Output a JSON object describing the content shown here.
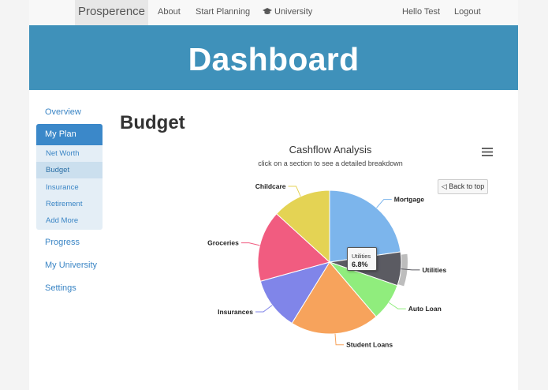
{
  "navbar": {
    "brand": "Prosperence",
    "links": [
      "About",
      "Start Planning",
      "University"
    ],
    "greeting": "Hello Test",
    "logout": "Logout",
    "university_icon": "graduation-cap-icon"
  },
  "banner": {
    "title": "Dashboard"
  },
  "sidebar": {
    "items": [
      "Overview",
      "My Plan",
      "Progress",
      "My University",
      "Settings"
    ],
    "active": "My Plan",
    "subitems": [
      "Net Worth",
      "Budget",
      "Insurance",
      "Retirement",
      "Add More"
    ],
    "active_subitem": "Budget"
  },
  "main": {
    "title": "Budget"
  },
  "chart": {
    "title": "Cashflow Analysis",
    "subtitle": "click on a section to see a detailed breakdown",
    "back_label": "◁ Back to top",
    "menu_icon": "hamburger-menu-icon",
    "tooltip": {
      "name": "Utilities",
      "value": "6.8%"
    },
    "hovered": "Utilities"
  },
  "chart_data": {
    "type": "pie",
    "title": "Cashflow Analysis",
    "subtitle": "click on a section to see a detailed breakdown",
    "slices": [
      {
        "name": "Mortgage",
        "value": 20.4,
        "color": "#7cb5ec"
      },
      {
        "name": "Utilities",
        "value": 6.8,
        "color": "#5b5b62"
      },
      {
        "name": "Auto Loan",
        "value": 7.6,
        "color": "#90ed7d"
      },
      {
        "name": "Student Loans",
        "value": 18.0,
        "color": "#f7a35c"
      },
      {
        "name": "Insurances",
        "value": 10.7,
        "color": "#8085e9"
      },
      {
        "name": "Groceries",
        "value": 14.4,
        "color": "#f15c80"
      },
      {
        "name": "Childcare",
        "value": 11.9,
        "color": "#e4d354"
      }
    ]
  }
}
